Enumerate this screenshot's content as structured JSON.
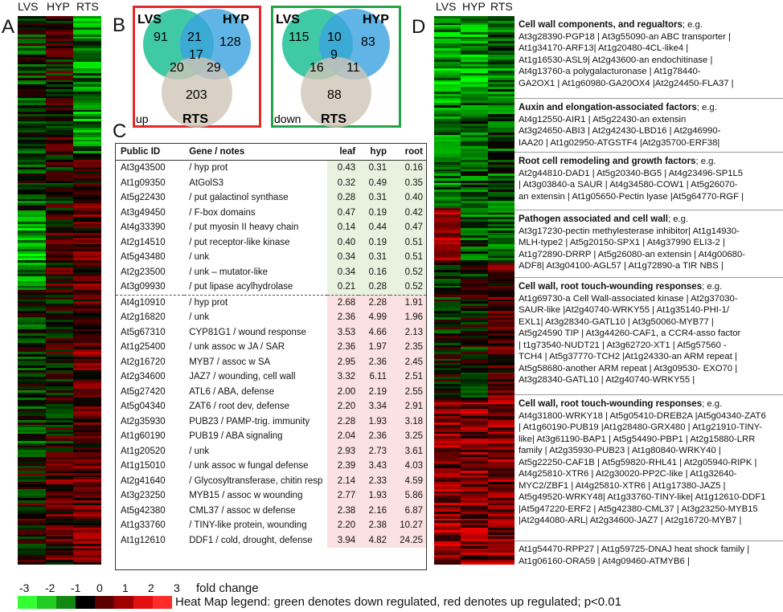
{
  "panels": {
    "a": "A",
    "b": "B",
    "c": "C",
    "d": "D"
  },
  "columns": [
    "LVS",
    "HYP",
    "RTS"
  ],
  "venn_up": {
    "lvs": "LVS",
    "hyp": "HYP",
    "rts": "RTS",
    "lvs_only": "91",
    "hyp_only": "128",
    "rts_only": "203",
    "lvs_hyp": "21",
    "lvs_rts": "20",
    "hyp_rts": "29",
    "all": "17",
    "tag": "up",
    "border_color": "#e32a2a"
  },
  "venn_down": {
    "lvs": "LVS",
    "hyp": "HYP",
    "rts": "RTS",
    "lvs_only": "115",
    "hyp_only": "83",
    "rts_only": "88",
    "lvs_hyp": "10",
    "lvs_rts": "16",
    "hyp_rts": "11",
    "all": "9",
    "tag": "down",
    "border_color": "#25a34a"
  },
  "table": {
    "headers": {
      "id": "Public ID",
      "gene": "Gene / notes",
      "leaf": "leaf",
      "hyp": "hyp",
      "root": "root"
    },
    "rows": [
      {
        "id": "At3g43500",
        "gene": "/ hyp prot",
        "leaf": "0.43",
        "hyp": "0.31",
        "root": "0.16",
        "dir": "down"
      },
      {
        "id": "At1g09350",
        "gene": "AtGolS3",
        "leaf": "0.32",
        "hyp": "0.49",
        "root": "0.35",
        "dir": "down"
      },
      {
        "id": "At5g22430",
        "gene": "/ put galactinol synthase",
        "leaf": "0.28",
        "hyp": "0.31",
        "root": "0.40",
        "dir": "down"
      },
      {
        "id": "At3g49450",
        "gene": "/ F-box domains",
        "leaf": "0.47",
        "hyp": "0.19",
        "root": "0.42",
        "dir": "down"
      },
      {
        "id": "At4g33390",
        "gene": "/ put myosin II heavy chain",
        "leaf": "0.14",
        "hyp": "0.44",
        "root": "0.47",
        "dir": "down"
      },
      {
        "id": "At2g14510",
        "gene": "/ put receptor-like kinase",
        "leaf": "0.40",
        "hyp": "0.19",
        "root": "0.51",
        "dir": "down"
      },
      {
        "id": "At5g43480",
        "gene": "/ unk",
        "leaf": "0.34",
        "hyp": "0.31",
        "root": "0.51",
        "dir": "down"
      },
      {
        "id": "At2g23500",
        "gene": "/ unk – mutator-like",
        "leaf": "0.34",
        "hyp": "0.16",
        "root": "0.52",
        "dir": "down"
      },
      {
        "id": "At3g09930",
        "gene": "/ put  lipase acylhydrolase",
        "leaf": "0.21",
        "hyp": "0.28",
        "root": "0.52",
        "dir": "down"
      },
      {
        "id": "At4g10910",
        "gene": "/ hyp prot",
        "leaf": "2.68",
        "hyp": "2.28",
        "root": "1.91",
        "dir": "up"
      },
      {
        "id": "At2g16820",
        "gene": "/ unk",
        "leaf": "2.36",
        "hyp": "4.99",
        "root": "1.96",
        "dir": "up"
      },
      {
        "id": "At5g67310",
        "gene": "CYP81G1 / wound response",
        "leaf": "3.53",
        "hyp": "4.66",
        "root": "2.13",
        "dir": "up"
      },
      {
        "id": "At1g25400",
        "gene": "/ unk assoc w JA / SAR",
        "leaf": "2.36",
        "hyp": "1.97",
        "root": "2.35",
        "dir": "up"
      },
      {
        "id": "At2g16720",
        "gene": "MYB7 / assoc w SA",
        "leaf": "2.95",
        "hyp": "2.36",
        "root": "2.45",
        "dir": "up"
      },
      {
        "id": "At2g34600",
        "gene": "JAZ7 / wounding, cell wall",
        "leaf": "3.32",
        "hyp": "6.11",
        "root": "2.51",
        "dir": "up"
      },
      {
        "id": "At5g27420",
        "gene": "ATL6 / ABA, defense",
        "leaf": "2.00",
        "hyp": "2.19",
        "root": "2.55",
        "dir": "up"
      },
      {
        "id": "At5g04340",
        "gene": "ZAT6  / root dev, defense",
        "leaf": "2.20",
        "hyp": "3.34",
        "root": "2.91",
        "dir": "up"
      },
      {
        "id": "At2g35930",
        "gene": "PUB23 / PAMP-trig. immunity",
        "leaf": "2.28",
        "hyp": "1.93",
        "root": "3.18",
        "dir": "up"
      },
      {
        "id": "At1g60190",
        "gene": "PUB19 / ABA signaling",
        "leaf": "2.04",
        "hyp": "2.36",
        "root": "3.25",
        "dir": "up"
      },
      {
        "id": "At1g20520",
        "gene": "/ unk",
        "leaf": "2.93",
        "hyp": "2.73",
        "root": "3.61",
        "dir": "up"
      },
      {
        "id": "At1g15010",
        "gene": "/ unk assoc w fungal defense",
        "leaf": "2.39",
        "hyp": "3.43",
        "root": "4.03",
        "dir": "up"
      },
      {
        "id": "At2g41640",
        "gene": "/ Glycosyltransferase, chitin resp",
        "leaf": "2.14",
        "hyp": "2.33",
        "root": "4.59",
        "dir": "up"
      },
      {
        "id": "At3g23250",
        "gene": "MYB15 / assoc w wounding",
        "leaf": "2.77",
        "hyp": "1.93",
        "root": "5.86",
        "dir": "up"
      },
      {
        "id": "At5g42380",
        "gene": "CML37 / assoc w defense",
        "leaf": "2.38",
        "hyp": "2.16",
        "root": "6.87",
        "dir": "up"
      },
      {
        "id": "At1g33760",
        "gene": "/ TINY-like protein, wounding",
        "leaf": "2.20",
        "hyp": "2.38",
        "root": "10.27",
        "dir": "up"
      },
      {
        "id": "At1g12610",
        "gene": "DDF1 / cold, drought, defense",
        "leaf": "3.94",
        "hyp": "4.82",
        "root": "24.25",
        "dir": "up"
      }
    ]
  },
  "notes": [
    {
      "title": "Cell wall components, and regualtors",
      "suffix": "; e.g.",
      "lines": [
        "At3g28390-PGP18 | At3g55090-an ABC transporter |",
        "At1g34170-ARF13| At1g20480-4CL-like4 |",
        "At1g16530-ASL9| At2g43600-an endochitinase  |",
        "At4g13760-a polygalacturonase | At1g78440-",
        "GA2OX1 | At1g60980-GA20OX4 |At2g24450-FLA37 |"
      ]
    },
    {
      "title": "Auxin and elongation-associated factors",
      "suffix": "; e.g.",
      "lines": [
        "At4g12550-AIR1 |  At5g22430-an extensin",
        "At3g24650-ABI3 | At2g42430-LBD16 | At2g46990-",
        "IAA20 | At1g02950-ATGSTF4  |At2g35700-ERF38|"
      ]
    },
    {
      "title": "Root cell remodeling and growth factors",
      "suffix": "; e.g.",
      "lines": [
        "At2g44810-DAD1 |  At5g20340-BG5  |  At4g23496-SP1L5",
        "| At3g03840-a SAUR | At4g34580-COW1 | At5g26070-",
        "an extensin | At1g05650-Pectin lyase |At5g64770-RGF |"
      ]
    },
    {
      "title": "Pathogen associated and cell wall",
      "suffix": "; e.g.",
      "lines": [
        "At3g17230-pectin methylesterase inhibitor| At1g14930-",
        "MLH-type2 | At5g20150-SPX1 | At4g37990 ELI3-2 |",
        "At1g72890-DRRP  | At5g26080-an extensin | At4g00680-",
        "ADF8| At3g04100-AGL57 | At1g72890-a TIR NBS |"
      ]
    },
    {
      "title": "Cell wall, root touch-wounding responses",
      "suffix": "; e.g.",
      "lines": [
        "At1g69730-a Cell Wall-associated kinase | At2g37030-",
        "SAUR-like |At2g40740-WRKY55  | At1g35140-PHI-1/",
        "EXL1| At3g28340-GATL10 | At3g50060-MYB77 |",
        "At5g24590 TIP | At3g44260-CAF1, a CCR4-asso factor",
        "| t1g73540-NUDT21 | At3g62720-XT1  |  At5g57560 -",
        "TCH4 | At5g37770-TCH2 |At1g24330-an ARM repeat |",
        "At5g58680-another ARM repeat | At3g09530- EXO70 |",
        "At3g28340-GATL10 | At2g40740-WRKY55 |"
      ]
    },
    {
      "title": "Cell wall, root touch-wounding responses",
      "suffix": "; e.g.",
      "lines": [
        "At4g31800-WRKY18 | At5g05410-DREB2A |At5g04340-ZAT6",
        "| At1g60190-PUB19 |At1g28480-GRX480 | At1g21910-TINY-",
        "like| At3g61190-BAP1 | At5g54490-PBP1  | At2g15880-LRR",
        "family | At2g35930-PUB23 | At1g80840-WRKY40 |",
        "At5g22250-CAF1B | At5g59820-RHL41 | At2g05940-RIPK |",
        "At4g25810-XTR6 | At2g30020-PP2C-like | At1g32640-",
        "MYC2/ZBF1 | At4g25810-XTR6 | At1g17380-JAZ5 |",
        "At5g49520-WRKY48| At1g33760-TINY-like| At1g12610-DDF1",
        "|At5g47220-ERF2 | At5g42380-CML37 | At3g23250-MYB15",
        "|At2g44080-ARL| At2g34600-JAZ7 | At2g16720-MYB7  |"
      ]
    },
    {
      "title": "",
      "suffix": "",
      "lines": [
        "At1g54470-RPP27 | At1g59725-DNAJ heat shock family |",
        "At1g06160-ORA59 | At4g09460-ATMYB6 |"
      ]
    }
  ],
  "legend": {
    "ticks": [
      "-3",
      "-2",
      "-1",
      "0",
      "1",
      "2",
      "3"
    ],
    "suffix": "fold change",
    "text": "Heat Map legend: green denotes down regulated, red denotes up regulated; p<0.01",
    "colors": [
      "#33ff33",
      "#22cc22",
      "#118811",
      "#000000",
      "#5a0000",
      "#a00000",
      "#e31010",
      "#ff2a2a"
    ]
  }
}
